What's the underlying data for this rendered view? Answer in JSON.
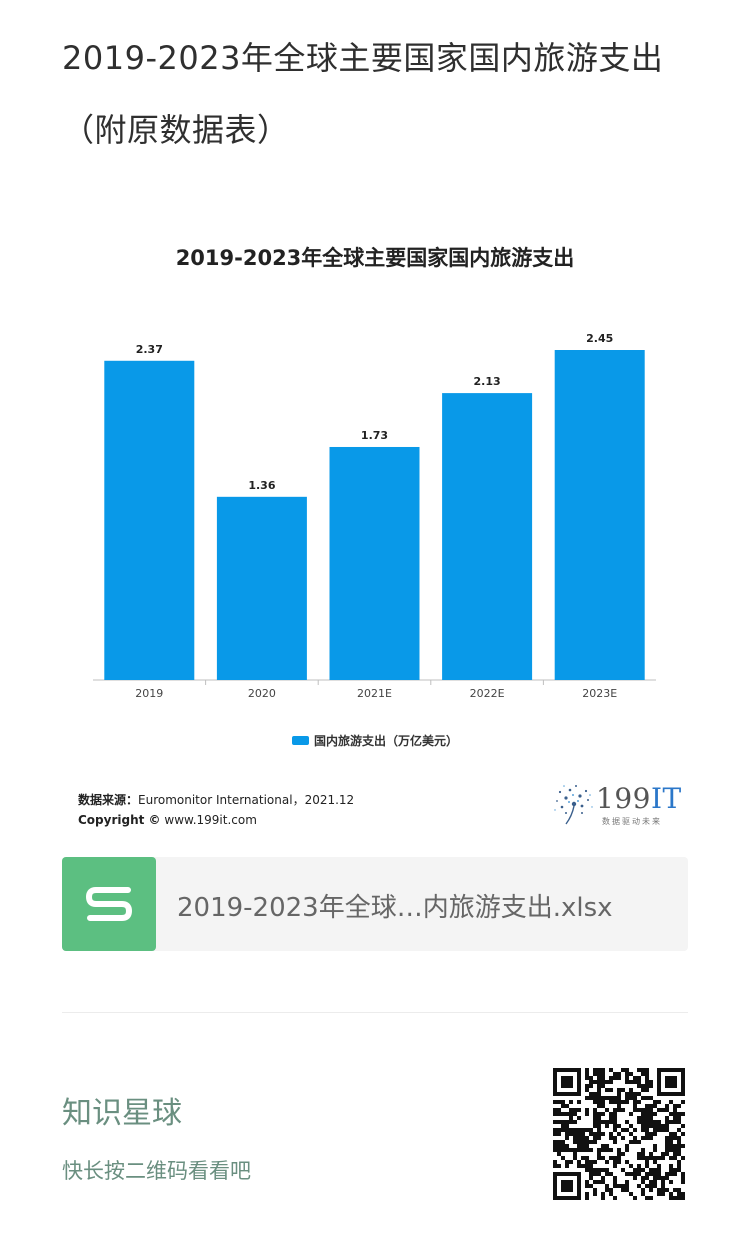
{
  "post": {
    "title_line1": "2019-2023年全球主要国家国内旅游支出",
    "title_line2": "（附原数据表）"
  },
  "chart_data": {
    "type": "bar",
    "title": "2019-2023年全球主要国家国内旅游支出",
    "categories": [
      "2019",
      "2020",
      "2021E",
      "2022E",
      "2023E"
    ],
    "series": [
      {
        "name": "国内旅游支出（万亿美元）",
        "values": [
          2.37,
          1.36,
          1.73,
          2.13,
          2.45
        ],
        "color": "#0999e8"
      }
    ],
    "value_labels": [
      "2.37",
      "1.36",
      "1.73",
      "2.13",
      "2.45"
    ],
    "ylim": [
      0,
      2.8
    ],
    "grid": false,
    "legend_position": "bottom-center"
  },
  "source": {
    "label": "数据来源：",
    "text": "Euromonitor International，2021.12",
    "copyright_label": "Copyright ©",
    "copyright_site": "www.199it.com"
  },
  "brand": {
    "name_num": "199",
    "name_it": "IT",
    "tagline": "数据驱动未来"
  },
  "file": {
    "name": "2019-2023年全球…内旅游支出.xlsx",
    "icon": "spreadsheet-s-icon"
  },
  "promo": {
    "title": "知识星球",
    "subtitle": "快长按二维码看看吧",
    "qr_icon": "qr-code-icon"
  }
}
